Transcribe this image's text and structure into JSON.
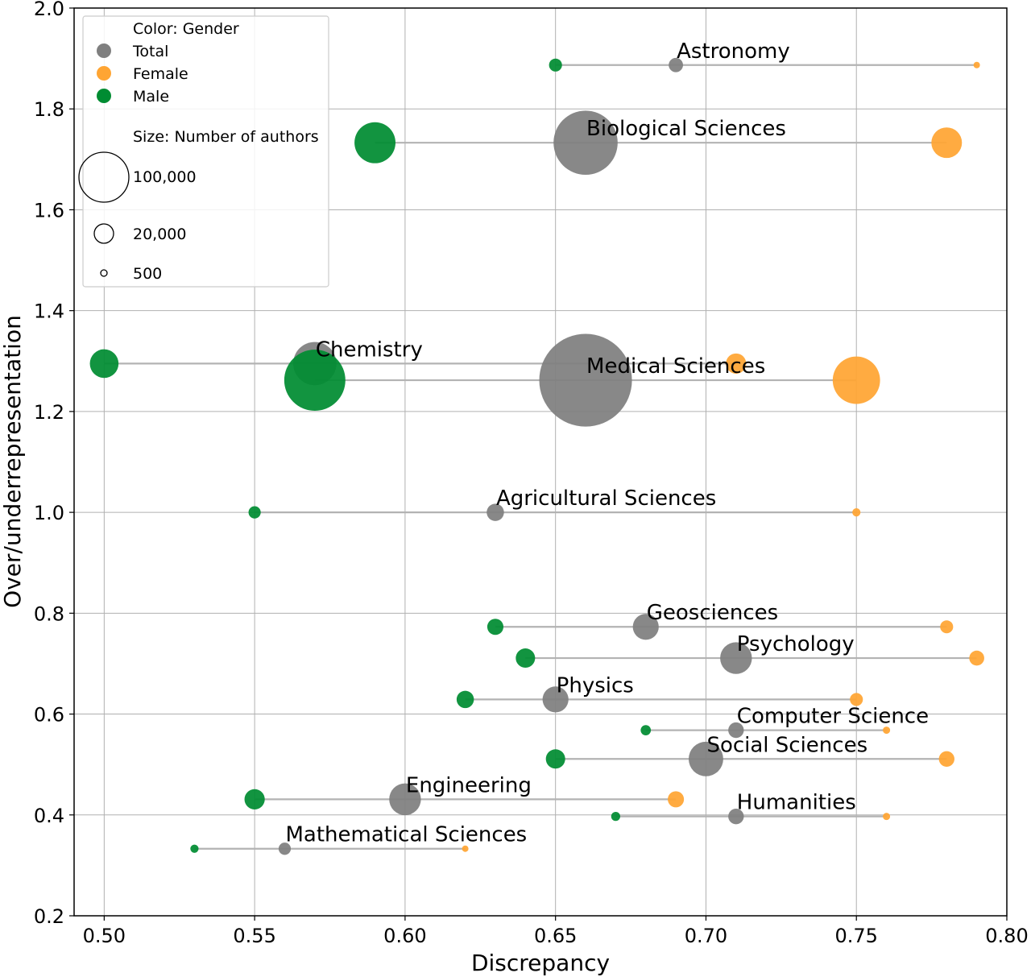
{
  "chart_data": {
    "type": "scatter",
    "xlabel": "Discrepancy",
    "ylabel": "Over/underrepresentation",
    "xlim": [
      0.49,
      0.8
    ],
    "ylim": [
      0.2,
      2.0
    ],
    "xticks": [
      "0.50",
      "0.55",
      "0.60",
      "0.65",
      "0.70",
      "0.75",
      "0.80"
    ],
    "yticks": [
      "0.2",
      "0.4",
      "0.6",
      "0.8",
      "1.0",
      "1.2",
      "1.4",
      "1.6",
      "1.8",
      "2.0"
    ],
    "grid": true,
    "legend": {
      "placement": "top-left",
      "color_title": "Color: Gender",
      "color_items": [
        {
          "label": "Total",
          "color": "#7f7f7f"
        },
        {
          "label": "Female",
          "color": "#ffa533"
        },
        {
          "label": "Male",
          "color": "#008c32"
        }
      ],
      "size_title": "Size: Number of authors",
      "size_items": [
        {
          "label": "100,000",
          "value": 100000
        },
        {
          "label": "20,000",
          "value": 20000
        },
        {
          "label": "500",
          "value": 500
        }
      ]
    },
    "colors": {
      "total": "#7f7f7f",
      "female": "#ffa533",
      "male": "#008c32",
      "connector": "#b3b3b3"
    },
    "series_names": [
      "Total",
      "Female",
      "Male"
    ],
    "categories": [
      {
        "name": "Astronomy",
        "y": 1.887,
        "total": 0.69,
        "female": 0.79,
        "male": 0.65,
        "n_total": 5500,
        "n_female": 1000,
        "n_male": 4500
      },
      {
        "name": "Biological Sciences",
        "y": 1.733,
        "total": 0.66,
        "female": 0.78,
        "male": 0.59,
        "n_total": 110000,
        "n_female": 25000,
        "n_male": 45000
      },
      {
        "name": "Chemistry",
        "y": 1.295,
        "total": 0.57,
        "female": 0.71,
        "male": 0.5,
        "n_total": 50000,
        "n_female": 11000,
        "n_male": 22000
      },
      {
        "name": "Medical Sciences",
        "y": 1.262,
        "total": 0.66,
        "female": 0.75,
        "male": 0.57,
        "n_total": 230000,
        "n_female": 60000,
        "n_male": 100000
      },
      {
        "name": "Agricultural Sciences",
        "y": 1.0,
        "total": 0.63,
        "female": 0.75,
        "male": 0.55,
        "n_total": 8000,
        "n_female": 1800,
        "n_male": 4000
      },
      {
        "name": "Geosciences",
        "y": 0.773,
        "total": 0.68,
        "female": 0.78,
        "male": 0.63,
        "n_total": 18000,
        "n_female": 4500,
        "n_male": 7000
      },
      {
        "name": "Psychology",
        "y": 0.711,
        "total": 0.71,
        "female": 0.79,
        "male": 0.64,
        "n_total": 27000,
        "n_female": 6000,
        "n_male": 10000
      },
      {
        "name": "Physics",
        "y": 0.629,
        "total": 0.65,
        "female": 0.75,
        "male": 0.62,
        "n_total": 18000,
        "n_female": 4500,
        "n_male": 8000
      },
      {
        "name": "Computer Science",
        "y": 0.568,
        "total": 0.71,
        "female": 0.76,
        "male": 0.68,
        "n_total": 6500,
        "n_female": 1400,
        "n_male": 2800
      },
      {
        "name": "Social Sciences",
        "y": 0.511,
        "total": 0.7,
        "female": 0.78,
        "male": 0.65,
        "n_total": 32000,
        "n_female": 6500,
        "n_male": 10000
      },
      {
        "name": "Engineering",
        "y": 0.431,
        "total": 0.6,
        "female": 0.69,
        "male": 0.55,
        "n_total": 27000,
        "n_female": 7000,
        "n_male": 11000
      },
      {
        "name": "Humanities",
        "y": 0.397,
        "total": 0.71,
        "female": 0.76,
        "male": 0.67,
        "n_total": 6500,
        "n_female": 1400,
        "n_male": 2200
      },
      {
        "name": "Mathematical Sciences",
        "y": 0.333,
        "total": 0.56,
        "female": 0.62,
        "male": 0.53,
        "n_total": 4000,
        "n_female": 1000,
        "n_male": 1800
      }
    ]
  }
}
